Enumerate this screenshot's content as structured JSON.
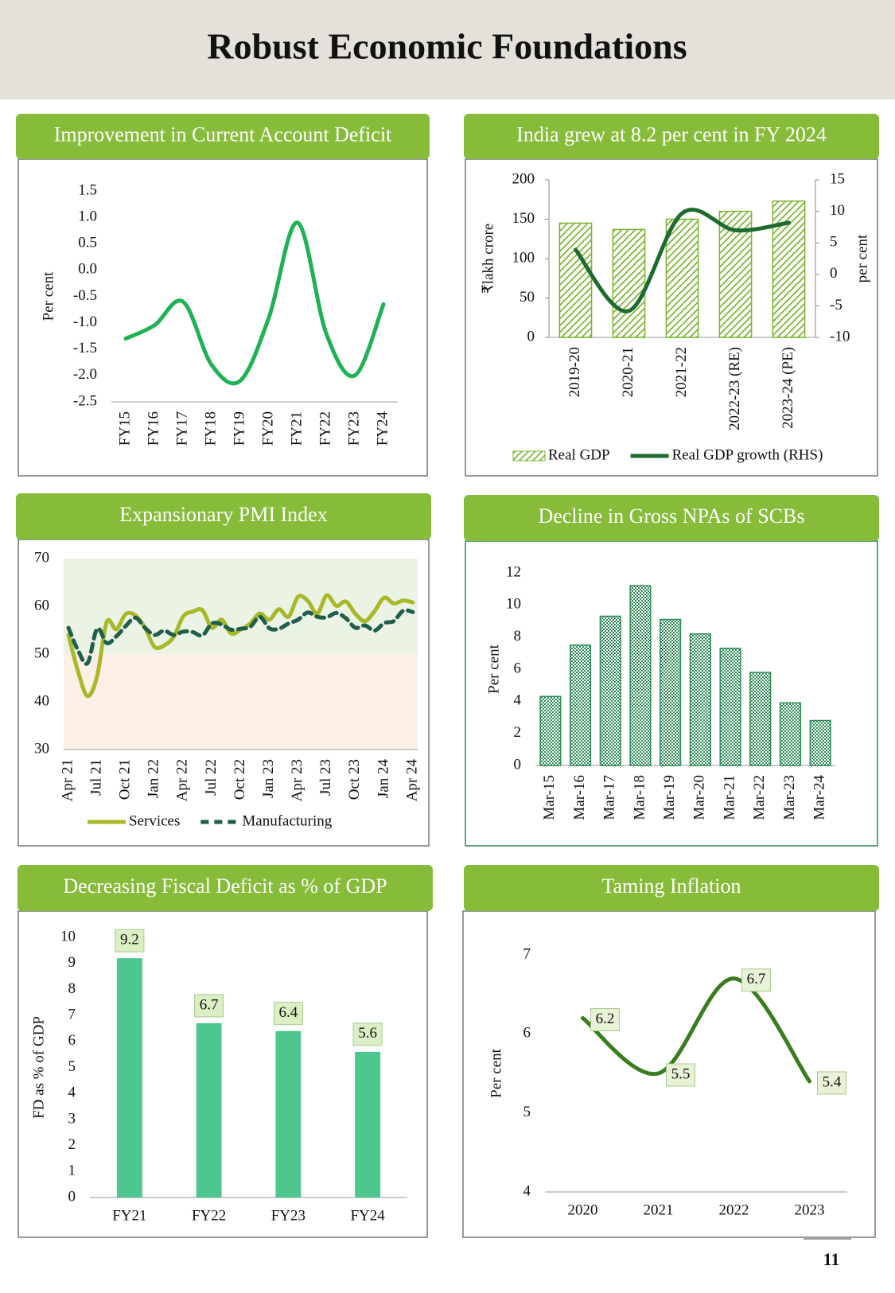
{
  "title": "Robust Economic Foundations",
  "page_number": "11",
  "chart_data": [
    {
      "type": "line",
      "title": "Improvement in Current Account Deficit",
      "y_label": "Per cent",
      "categories": [
        "FY15",
        "FY16",
        "FY17",
        "FY18",
        "FY19",
        "FY20",
        "FY21",
        "FY22",
        "FY23",
        "FY24"
      ],
      "values": [
        -1.3,
        -1.05,
        -0.6,
        -1.8,
        -2.1,
        -0.9,
        0.9,
        -1.2,
        -2.0,
        -0.65
      ],
      "color": "#1fb254",
      "ylim": [
        -2.5,
        1.5
      ],
      "yticks": [
        -2.5,
        {
          "value": -2,
          "label": "-2.0"
        },
        -1.5,
        {
          "value": -1,
          "label": "-1.0"
        },
        -0.5,
        {
          "value": 0,
          "label": "0.0"
        },
        0.5,
        {
          "value": 1,
          "label": "1.0"
        },
        1.5
      ]
    },
    {
      "type": "combo",
      "title": "India grew at 8.2 per cent in FY 2024",
      "y_label": "₹lakh crore",
      "y2_label": "per cent",
      "categories": [
        "2019-20",
        "2020-21",
        "2021-22",
        "2022-23 (RE)",
        "2023-24 (PE)"
      ],
      "series": [
        {
          "name": "Real GDP",
          "type": "bar",
          "color": "#7ab530",
          "pattern": "hatch",
          "values": [
            145,
            137,
            150,
            160,
            173
          ]
        },
        {
          "name": "Real GDP growth (RHS)",
          "type": "line",
          "axis": "y2",
          "color": "#1e6b30",
          "values": [
            3.9,
            -5.8,
            9.7,
            7.0,
            8.2
          ]
        }
      ],
      "ylim": [
        0,
        200
      ],
      "yticks": [
        0,
        50,
        100,
        150,
        200
      ],
      "y2lim": [
        -10,
        15
      ],
      "y2ticks": [
        -10,
        -5,
        0,
        5,
        10,
        15
      ],
      "legend": "bottom"
    },
    {
      "type": "line",
      "title": "Expansionary PMI Index",
      "categories": [
        "Apr 21",
        null,
        null,
        "Jul 21",
        null,
        null,
        "Oct 21",
        null,
        null,
        "Jan 22",
        null,
        null,
        "Apr 22",
        null,
        null,
        "Jul 22",
        null,
        null,
        "Oct 22",
        null,
        null,
        "Jan 23",
        null,
        null,
        "Apr 23",
        null,
        null,
        "Jul 23",
        null,
        null,
        "Oct 23",
        null,
        null,
        "Jan 24",
        null,
        null,
        "Apr 24"
      ],
      "series": [
        {
          "name": "Services",
          "color": "#a8b82a",
          "values": [
            54,
            46.4,
            41.2,
            45.4,
            56.7,
            55.2,
            58.4,
            58.1,
            55.5,
            51.5,
            51.8,
            53.6,
            57.9,
            58.9,
            59.2,
            55.5,
            57.2,
            54.3,
            55.1,
            56.4,
            58.5,
            57.2,
            59.4,
            57.8,
            62.0,
            61.2,
            58.5,
            62.3,
            60.1,
            61.0,
            58.4,
            56.9,
            59.0,
            61.8,
            60.6,
            61.2,
            60.8
          ]
        },
        {
          "name": "Manufacturing",
          "color": "#1e5e4a",
          "dash": true,
          "values": [
            55.5,
            50.8,
            48.1,
            55.3,
            52.3,
            53.7,
            55.9,
            57.6,
            55.5,
            54.0,
            54.9,
            54.0,
            54.7,
            54.6,
            53.9,
            56.4,
            56.2,
            55.1,
            55.3,
            55.7,
            57.8,
            55.4,
            55.3,
            56.4,
            57.2,
            58.7,
            57.8,
            57.7,
            58.6,
            57.5,
            55.5,
            56.0,
            54.9,
            56.5,
            56.9,
            59.1,
            58.8
          ]
        }
      ],
      "ylim": [
        30,
        70
      ],
      "yticks": [
        30,
        40,
        50,
        60,
        70
      ],
      "bands": [
        {
          "from": 30,
          "to": 50,
          "color": "#fcefe6"
        },
        {
          "from": 50,
          "to": 70,
          "color": "#ebf4e4"
        }
      ],
      "legend": "bottom"
    },
    {
      "type": "bar",
      "title": "Decline in Gross NPAs of SCBs",
      "y_label": "Per cent",
      "categories": [
        "Mar-15",
        "Mar-16",
        "Mar-17",
        "Mar-18",
        "Mar-19",
        "Mar-20",
        "Mar-21",
        "Mar-22",
        "Mar-23",
        "Mar-24"
      ],
      "values": [
        4.3,
        7.5,
        9.3,
        11.2,
        9.1,
        8.2,
        7.3,
        5.8,
        3.9,
        2.8
      ],
      "color": "#2e8b57",
      "pattern": "dots",
      "ylim": [
        0,
        12
      ],
      "yticks": [
        0,
        2,
        4,
        6,
        8,
        10,
        12
      ]
    },
    {
      "type": "bar",
      "title": "Decreasing Fiscal Deficit as %  of GDP",
      "y_label": "FD as % of GDP",
      "categories": [
        "FY21",
        "FY22",
        "FY23",
        "FY24"
      ],
      "values": [
        9.2,
        6.7,
        6.4,
        5.6
      ],
      "color": "#4ec78f",
      "data_labels": true,
      "ylim": [
        0,
        10
      ],
      "yticks": [
        0,
        1,
        2,
        3,
        4,
        5,
        6,
        7,
        8,
        9,
        10
      ]
    },
    {
      "type": "line",
      "title": "Taming Inflation",
      "y_label": "Per cent",
      "categories": [
        "2020",
        "2021",
        "2022",
        "2023"
      ],
      "values": [
        6.2,
        5.5,
        6.7,
        5.4
      ],
      "color": "#3a7d1e",
      "data_labels": true,
      "ylim": [
        4,
        7
      ],
      "yticks": [
        4,
        5,
        6,
        7
      ]
    }
  ]
}
